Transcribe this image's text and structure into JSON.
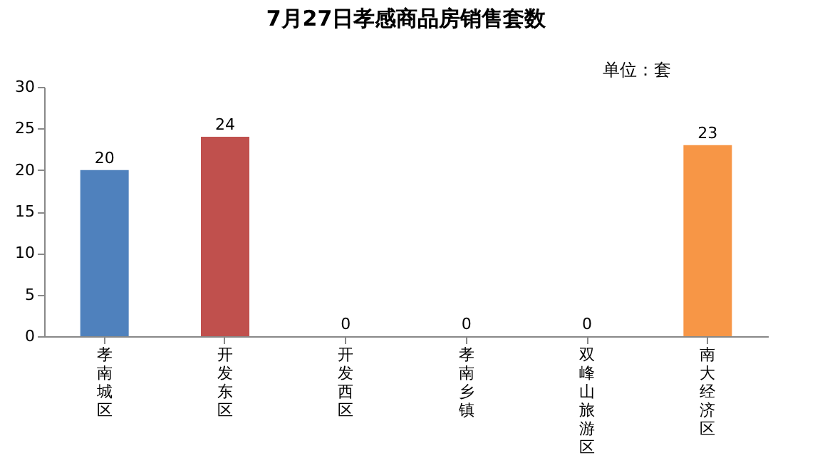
{
  "chart_data": {
    "type": "bar",
    "title": "7月27日孝感商品房销售套数",
    "annotations": [
      "单位：套"
    ],
    "categories": [
      "孝南城区",
      "开发东区",
      "开发西区",
      "孝南乡镇",
      "双峰山旅游区",
      "南大经济区"
    ],
    "values": [
      20,
      24,
      0,
      0,
      0,
      23
    ],
    "colors": [
      "#4f81bd",
      "#c0504d",
      "#9bbb59",
      "#8064a2",
      "#4bacc6",
      "#f79646"
    ],
    "ylim": [
      0,
      30
    ],
    "yticks": [
      0,
      5,
      10,
      15,
      20,
      25,
      30
    ],
    "data_labels": true,
    "grid": false
  }
}
